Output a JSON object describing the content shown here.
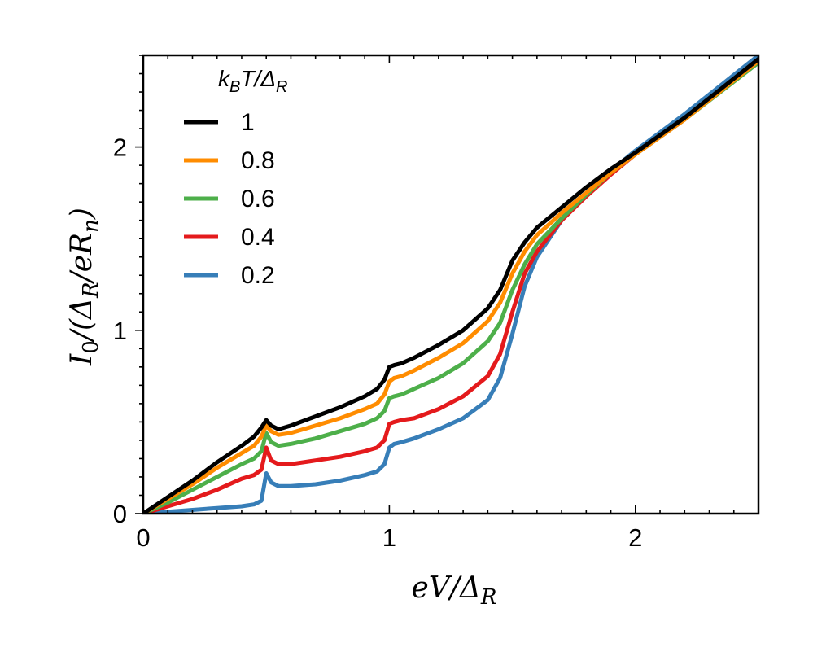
{
  "chart_data": {
    "type": "line",
    "xlabel": "eV/Δ_R",
    "ylabel": "I_0/(Δ_R/eR_n)",
    "xlim": [
      0,
      2.5
    ],
    "ylim": [
      0,
      2.5
    ],
    "xticks": [
      0,
      1,
      2
    ],
    "yticks": [
      0,
      1,
      2
    ],
    "xtick_labels": [
      "0",
      "1",
      "2"
    ],
    "ytick_labels": [
      "0",
      "1",
      "2"
    ],
    "grid": false,
    "legend": {
      "title": "k_BT/Δ_R",
      "placement": "top-left"
    },
    "series": [
      {
        "name": "1",
        "color": "#000000",
        "x": [
          0,
          0.1,
          0.2,
          0.3,
          0.4,
          0.45,
          0.48,
          0.5,
          0.52,
          0.55,
          0.6,
          0.7,
          0.8,
          0.9,
          0.95,
          0.98,
          1.0,
          1.02,
          1.05,
          1.1,
          1.2,
          1.3,
          1.4,
          1.45,
          1.5,
          1.55,
          1.6,
          1.7,
          1.8,
          1.9,
          2.0,
          2.2,
          2.5
        ],
        "y": [
          0,
          0.09,
          0.18,
          0.28,
          0.37,
          0.42,
          0.47,
          0.51,
          0.48,
          0.46,
          0.48,
          0.53,
          0.58,
          0.64,
          0.68,
          0.73,
          0.8,
          0.81,
          0.82,
          0.85,
          0.92,
          1.0,
          1.12,
          1.22,
          1.38,
          1.48,
          1.56,
          1.67,
          1.78,
          1.88,
          1.97,
          2.16,
          2.48
        ]
      },
      {
        "name": "0.8",
        "color": "#ff8c00",
        "x": [
          0,
          0.1,
          0.2,
          0.3,
          0.4,
          0.45,
          0.48,
          0.5,
          0.52,
          0.55,
          0.6,
          0.7,
          0.8,
          0.9,
          0.95,
          0.98,
          1.0,
          1.02,
          1.05,
          1.1,
          1.2,
          1.3,
          1.4,
          1.45,
          1.5,
          1.55,
          1.6,
          1.7,
          1.8,
          1.9,
          2.0,
          2.2,
          2.5
        ],
        "y": [
          0,
          0.08,
          0.16,
          0.25,
          0.33,
          0.37,
          0.42,
          0.48,
          0.45,
          0.43,
          0.44,
          0.48,
          0.52,
          0.57,
          0.6,
          0.65,
          0.72,
          0.74,
          0.75,
          0.78,
          0.85,
          0.93,
          1.05,
          1.15,
          1.31,
          1.43,
          1.52,
          1.64,
          1.75,
          1.86,
          1.96,
          2.15,
          2.47
        ]
      },
      {
        "name": "0.6",
        "color": "#4daf4a",
        "x": [
          0,
          0.1,
          0.2,
          0.3,
          0.4,
          0.45,
          0.48,
          0.5,
          0.52,
          0.55,
          0.6,
          0.7,
          0.8,
          0.9,
          0.95,
          0.98,
          1.0,
          1.02,
          1.05,
          1.1,
          1.2,
          1.3,
          1.4,
          1.45,
          1.5,
          1.55,
          1.6,
          1.7,
          1.8,
          1.9,
          2.0,
          2.2,
          2.5
        ],
        "y": [
          0,
          0.06,
          0.13,
          0.2,
          0.27,
          0.3,
          0.34,
          0.44,
          0.39,
          0.37,
          0.38,
          0.41,
          0.45,
          0.49,
          0.52,
          0.56,
          0.63,
          0.64,
          0.65,
          0.68,
          0.74,
          0.82,
          0.94,
          1.04,
          1.22,
          1.36,
          1.47,
          1.61,
          1.74,
          1.86,
          1.96,
          2.15,
          2.46
        ]
      },
      {
        "name": "0.4",
        "color": "#e41a1c",
        "x": [
          0,
          0.1,
          0.2,
          0.3,
          0.4,
          0.45,
          0.48,
          0.5,
          0.52,
          0.55,
          0.6,
          0.7,
          0.8,
          0.9,
          0.95,
          0.98,
          1.0,
          1.02,
          1.05,
          1.1,
          1.2,
          1.3,
          1.4,
          1.45,
          1.5,
          1.55,
          1.6,
          1.7,
          1.8,
          1.9,
          2.0,
          2.2,
          2.5
        ],
        "y": [
          0,
          0.04,
          0.08,
          0.13,
          0.19,
          0.21,
          0.24,
          0.36,
          0.29,
          0.27,
          0.27,
          0.29,
          0.31,
          0.34,
          0.36,
          0.4,
          0.49,
          0.5,
          0.51,
          0.52,
          0.57,
          0.64,
          0.75,
          0.87,
          1.1,
          1.31,
          1.43,
          1.6,
          1.73,
          1.85,
          1.96,
          2.15,
          2.47
        ]
      },
      {
        "name": "0.2",
        "color": "#377eb8",
        "x": [
          0,
          0.1,
          0.2,
          0.3,
          0.4,
          0.45,
          0.48,
          0.5,
          0.52,
          0.55,
          0.6,
          0.7,
          0.8,
          0.9,
          0.95,
          0.98,
          1.0,
          1.02,
          1.05,
          1.1,
          1.2,
          1.3,
          1.4,
          1.45,
          1.5,
          1.55,
          1.6,
          1.7,
          1.8,
          1.9,
          2.0,
          2.2,
          2.5
        ],
        "y": [
          0,
          0.01,
          0.02,
          0.03,
          0.04,
          0.05,
          0.07,
          0.22,
          0.17,
          0.15,
          0.15,
          0.16,
          0.18,
          0.21,
          0.23,
          0.27,
          0.36,
          0.38,
          0.39,
          0.41,
          0.46,
          0.52,
          0.62,
          0.74,
          0.98,
          1.24,
          1.4,
          1.6,
          1.75,
          1.87,
          1.98,
          2.18,
          2.5
        ]
      }
    ]
  }
}
